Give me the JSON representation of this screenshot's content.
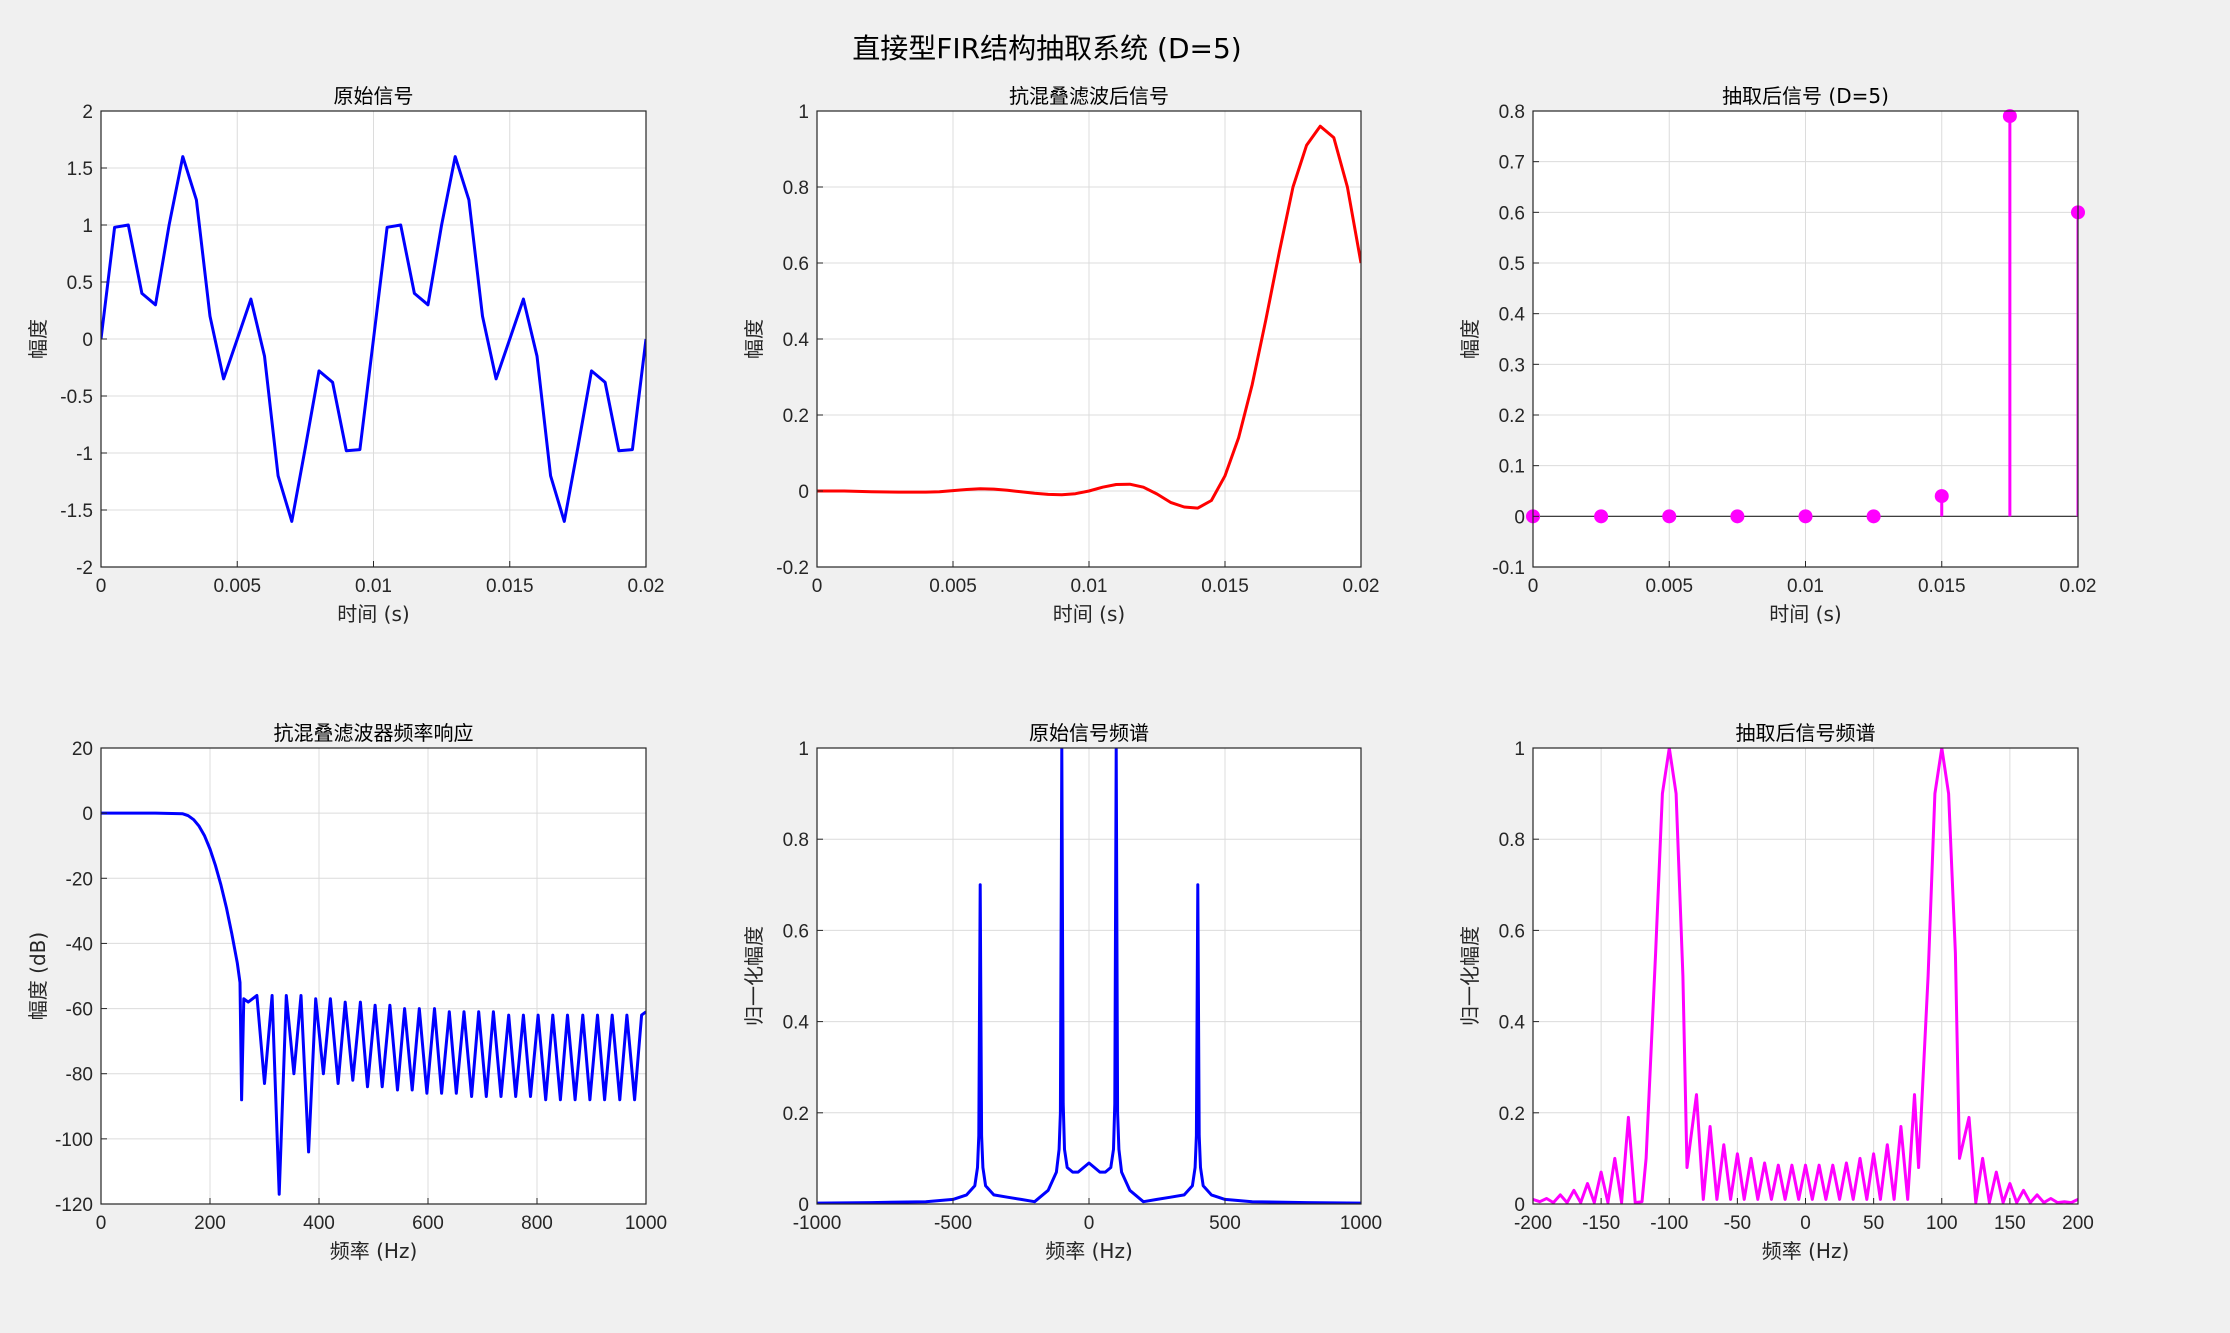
{
  "figure": {
    "title": "直接型FIR结构抽取系统 (D=5)"
  },
  "chart_data": [
    {
      "type": "line",
      "title": "原始信号",
      "xlabel": "时间 (s)",
      "ylabel": "幅度",
      "xlim": [
        0,
        0.02
      ],
      "ylim": [
        -2,
        2
      ],
      "xticks": [
        0,
        0.005,
        0.01,
        0.015,
        0.02
      ],
      "xtick_labels": [
        "0",
        "0.005",
        "0.01",
        "0.015",
        "0.02"
      ],
      "yticks": [
        -2,
        -1.5,
        -1,
        -0.5,
        0,
        0.5,
        1,
        1.5,
        2
      ],
      "ytick_labels": [
        "-2",
        "-1.5",
        "-1",
        "-0.5",
        "0",
        "0.5",
        "1",
        "1.5",
        "2"
      ],
      "grid": true,
      "series": [
        {
          "color": "#0000ff",
          "x": [
            0,
            0.0005,
            0.001,
            0.0015,
            0.002,
            0.0025,
            0.003,
            0.0035,
            0.004,
            0.0045,
            0.005,
            0.0055,
            0.006,
            0.0065,
            0.007,
            0.0075,
            0.008,
            0.0085,
            0.009,
            0.0095,
            0.01,
            0.0105,
            0.011,
            0.0115,
            0.012,
            0.0125,
            0.013,
            0.0135,
            0.014,
            0.0145,
            0.015,
            0.0155,
            0.016,
            0.0165,
            0.017,
            0.0175,
            0.018,
            0.0185,
            0.019,
            0.0195,
            0.02
          ],
          "y": [
            0,
            0.98,
            1.0,
            0.4,
            0.3,
            1.0,
            1.6,
            1.22,
            0.2,
            -0.35,
            0.0,
            0.35,
            -0.15,
            -1.2,
            -1.6,
            -0.95,
            -0.28,
            -0.38,
            -0.98,
            -0.97,
            0,
            0.98,
            1.0,
            0.4,
            0.3,
            1.0,
            1.6,
            1.22,
            0.2,
            -0.35,
            0.0,
            0.35,
            -0.15,
            -1.2,
            -1.6,
            -0.95,
            -0.28,
            -0.38,
            -0.98,
            -0.97,
            0
          ]
        }
      ]
    },
    {
      "type": "line",
      "title": "抗混叠滤波后信号",
      "xlabel": "时间 (s)",
      "ylabel": "幅度",
      "xlim": [
        0,
        0.02
      ],
      "ylim": [
        -0.2,
        1
      ],
      "xticks": [
        0,
        0.005,
        0.01,
        0.015,
        0.02
      ],
      "xtick_labels": [
        "0",
        "0.005",
        "0.01",
        "0.015",
        "0.02"
      ],
      "yticks": [
        -0.2,
        0,
        0.2,
        0.4,
        0.6,
        0.8,
        1
      ],
      "ytick_labels": [
        "-0.2",
        "0",
        "0.2",
        "0.4",
        "0.6",
        "0.8",
        "1"
      ],
      "grid": true,
      "series": [
        {
          "color": "#ff0000",
          "x": [
            0,
            0.001,
            0.002,
            0.003,
            0.004,
            0.0045,
            0.005,
            0.0055,
            0.006,
            0.0065,
            0.007,
            0.0075,
            0.008,
            0.0085,
            0.009,
            0.0095,
            0.01,
            0.0105,
            0.011,
            0.0115,
            0.012,
            0.0125,
            0.013,
            0.0135,
            0.014,
            0.0145,
            0.015,
            0.0155,
            0.016,
            0.0165,
            0.017,
            0.0175,
            0.018,
            0.0185,
            0.019,
            0.0195,
            0.02
          ],
          "y": [
            0,
            0.0,
            -0.002,
            -0.003,
            -0.003,
            -0.002,
            0.001,
            0.004,
            0.006,
            0.005,
            0.002,
            -0.002,
            -0.006,
            -0.009,
            -0.01,
            -0.007,
            0.0,
            0.01,
            0.017,
            0.018,
            0.01,
            -0.008,
            -0.03,
            -0.042,
            -0.045,
            -0.025,
            0.04,
            0.14,
            0.28,
            0.45,
            0.63,
            0.8,
            0.91,
            0.96,
            0.93,
            0.8,
            0.6
          ]
        }
      ]
    },
    {
      "type": "stem",
      "title": "抽取后信号 (D=5)",
      "xlabel": "时间 (s)",
      "ylabel": "幅度",
      "xlim": [
        0,
        0.02
      ],
      "ylim": [
        -0.1,
        0.8
      ],
      "xticks": [
        0,
        0.005,
        0.01,
        0.015,
        0.02
      ],
      "xtick_labels": [
        "0",
        "0.005",
        "0.01",
        "0.015",
        "0.02"
      ],
      "yticks": [
        -0.1,
        0,
        0.1,
        0.2,
        0.3,
        0.4,
        0.5,
        0.6,
        0.7,
        0.8
      ],
      "ytick_labels": [
        "-0.1",
        "0",
        "0.1",
        "0.2",
        "0.3",
        "0.4",
        "0.5",
        "0.6",
        "0.7",
        "0.8"
      ],
      "grid": true,
      "series": [
        {
          "color": "#ff00ff",
          "x": [
            0,
            0.0025,
            0.005,
            0.0075,
            0.01,
            0.0125,
            0.015,
            0.0175,
            0.02
          ],
          "y": [
            0,
            0,
            0,
            0,
            0,
            0,
            0.04,
            0.79,
            0.6
          ]
        }
      ]
    },
    {
      "type": "line",
      "title": "抗混叠滤波器频率响应",
      "xlabel": "频率 (Hz)",
      "ylabel": "幅度 (dB)",
      "xlim": [
        0,
        1000
      ],
      "ylim": [
        -120,
        20
      ],
      "xticks": [
        0,
        200,
        400,
        600,
        800,
        1000
      ],
      "xtick_labels": [
        "0",
        "200",
        "400",
        "600",
        "800",
        "1000"
      ],
      "yticks": [
        -120,
        -100,
        -80,
        -60,
        -40,
        -20,
        0,
        20
      ],
      "ytick_labels": [
        "-120",
        "-100",
        "-80",
        "-60",
        "-40",
        "-20",
        "0",
        "20"
      ],
      "grid": true,
      "series": [
        {
          "color": "#0000ff",
          "x": [
            0,
            100,
            150,
            160,
            170,
            180,
            190,
            200,
            210,
            220,
            230,
            240,
            250,
            255,
            258,
            262,
            270,
            278,
            286,
            300,
            314,
            327,
            340,
            354,
            367,
            381,
            394,
            408,
            421,
            435,
            448,
            462,
            476,
            489,
            503,
            516,
            530,
            544,
            557,
            571,
            584,
            598,
            612,
            625,
            639,
            652,
            666,
            680,
            693,
            707,
            720,
            734,
            748,
            761,
            775,
            788,
            802,
            816,
            829,
            843,
            856,
            870,
            884,
            897,
            911,
            924,
            938,
            952,
            965,
            979,
            992,
            1000
          ],
          "y": [
            0,
            0,
            -0.2,
            -0.8,
            -2,
            -4,
            -7,
            -11,
            -16,
            -22,
            -29,
            -37,
            -46,
            -52,
            -88,
            -57,
            -58,
            -57,
            -56,
            -83,
            -56,
            -117,
            -56,
            -80,
            -56,
            -104,
            -57,
            -80,
            -57,
            -83,
            -58,
            -82,
            -58,
            -84,
            -59,
            -84,
            -59,
            -85,
            -60,
            -85,
            -60,
            -86,
            -60,
            -86,
            -61,
            -86,
            -61,
            -87,
            -61,
            -87,
            -61,
            -87,
            -62,
            -87,
            -62,
            -87,
            -62,
            -88,
            -62,
            -88,
            -62,
            -88,
            -62,
            -88,
            -62,
            -88,
            -62,
            -88,
            -62,
            -88,
            -62,
            -61
          ]
        }
      ]
    },
    {
      "type": "line",
      "title": "原始信号频谱",
      "xlabel": "频率 (Hz)",
      "ylabel": "归一化幅度",
      "xlim": [
        -1000,
        1000
      ],
      "ylim": [
        0,
        1
      ],
      "xticks": [
        -1000,
        -500,
        0,
        500,
        1000
      ],
      "xtick_labels": [
        "-1000",
        "-500",
        "0",
        "500",
        "1000"
      ],
      "yticks": [
        0,
        0.2,
        0.4,
        0.6,
        0.8,
        1
      ],
      "ytick_labels": [
        "0",
        "0.2",
        "0.4",
        "0.6",
        "0.8",
        "1"
      ],
      "grid": true,
      "series": [
        {
          "color": "#0000ff",
          "x": [
            -1000,
            -800,
            -600,
            -500,
            -450,
            -420,
            -410,
            -405,
            -400,
            -395,
            -390,
            -380,
            -350,
            -300,
            -250,
            -200,
            -150,
            -120,
            -110,
            -105,
            -100,
            -95,
            -90,
            -80,
            -60,
            -40,
            -20,
            0,
            20,
            40,
            60,
            80,
            90,
            95,
            100,
            105,
            110,
            120,
            150,
            200,
            250,
            300,
            350,
            380,
            390,
            395,
            400,
            405,
            410,
            420,
            450,
            500,
            600,
            800,
            1000
          ],
          "y": [
            0.002,
            0.003,
            0.005,
            0.01,
            0.02,
            0.04,
            0.08,
            0.15,
            0.7,
            0.15,
            0.08,
            0.04,
            0.02,
            0.015,
            0.01,
            0.005,
            0.03,
            0.07,
            0.12,
            0.2,
            1.0,
            0.22,
            0.12,
            0.08,
            0.07,
            0.07,
            0.08,
            0.09,
            0.08,
            0.07,
            0.07,
            0.08,
            0.12,
            0.22,
            1.0,
            0.2,
            0.12,
            0.07,
            0.03,
            0.005,
            0.01,
            0.015,
            0.02,
            0.04,
            0.08,
            0.15,
            0.7,
            0.15,
            0.08,
            0.04,
            0.02,
            0.01,
            0.005,
            0.003,
            0.002
          ]
        }
      ]
    },
    {
      "type": "line",
      "title": "抽取后信号频谱",
      "xlabel": "频率 (Hz)",
      "ylabel": "归一化幅度",
      "xlim": [
        -200,
        200
      ],
      "ylim": [
        0,
        1
      ],
      "xticks": [
        -200,
        -150,
        -100,
        -50,
        0,
        50,
        100,
        150,
        200
      ],
      "xtick_labels": [
        "-200",
        "-150",
        "-100",
        "-50",
        "0",
        "50",
        "100",
        "150",
        "200"
      ],
      "yticks": [
        0,
        0.2,
        0.4,
        0.6,
        0.8,
        1
      ],
      "ytick_labels": [
        "0",
        "0.2",
        "0.4",
        "0.6",
        "0.8",
        "1"
      ],
      "grid": true,
      "series": [
        {
          "color": "#ff00ff",
          "x": [
            -200,
            -195,
            -190,
            -185,
            -180,
            -175,
            -170,
            -165,
            -160,
            -155,
            -150,
            -145,
            -140,
            -135,
            -130,
            -125,
            -120,
            -117,
            -110,
            -105,
            -100,
            -95,
            -90,
            -87,
            -80,
            -75,
            -70,
            -65,
            -60,
            -55,
            -50,
            -45,
            -40,
            -35,
            -30,
            -25,
            -20,
            -15,
            -10,
            -5,
            0,
            5,
            10,
            15,
            20,
            25,
            30,
            35,
            40,
            45,
            50,
            55,
            60,
            65,
            70,
            75,
            80,
            83,
            90,
            95,
            100,
            105,
            110,
            113,
            120,
            125,
            130,
            135,
            140,
            145,
            150,
            155,
            160,
            165,
            170,
            175,
            180,
            185,
            190,
            195,
            200
          ],
          "y": [
            0.01,
            0.005,
            0.012,
            0.003,
            0.02,
            0.003,
            0.03,
            0.003,
            0.045,
            0.003,
            0.07,
            0.003,
            0.1,
            0.003,
            0.19,
            0.003,
            0.005,
            0.1,
            0.55,
            0.9,
            1.0,
            0.9,
            0.5,
            0.08,
            0.24,
            0.01,
            0.17,
            0.01,
            0.13,
            0.01,
            0.11,
            0.01,
            0.1,
            0.01,
            0.09,
            0.01,
            0.085,
            0.01,
            0.085,
            0.01,
            0.085,
            0.01,
            0.085,
            0.01,
            0.085,
            0.01,
            0.09,
            0.01,
            0.1,
            0.01,
            0.11,
            0.01,
            0.13,
            0.01,
            0.17,
            0.01,
            0.24,
            0.08,
            0.5,
            0.9,
            1.0,
            0.9,
            0.55,
            0.1,
            0.19,
            0.003,
            0.1,
            0.003,
            0.07,
            0.003,
            0.045,
            0.003,
            0.03,
            0.003,
            0.02,
            0.003,
            0.012,
            0.003,
            0.005,
            0.003,
            0.01
          ]
        }
      ]
    }
  ]
}
